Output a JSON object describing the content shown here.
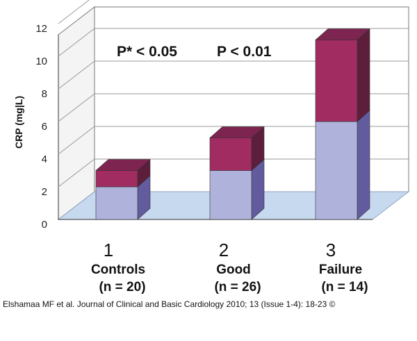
{
  "chart_data": {
    "type": "bar",
    "subtype": "stacked-3d",
    "title": "",
    "xlabel": "",
    "ylabel": "CRP (mg|L)",
    "ylim": [
      0,
      12
    ],
    "yticks": [
      "0",
      "2",
      "4",
      "6",
      "8",
      "10",
      "12"
    ],
    "categories": [
      {
        "number": "1",
        "name": "Controls",
        "n": "(n = 20)"
      },
      {
        "number": "2",
        "name": "Good",
        "n": "(n = 26)"
      },
      {
        "number": "3",
        "name": "Failure",
        "n": "(n = 14)"
      }
    ],
    "series": [
      {
        "name": "lower segment",
        "values": [
          2.0,
          3.0,
          6.0
        ]
      },
      {
        "name": "upper segment",
        "values": [
          1.0,
          2.0,
          5.0
        ]
      }
    ],
    "annotations": [
      "P* < 0.05",
      "P < 0.01"
    ],
    "colors": {
      "lower_front": "#afb3dc",
      "lower_side": "#625c9e",
      "upper_front": "#a02c62",
      "upper_side": "#5c1e3b",
      "top": "#7e2450",
      "floor": "#c6d9ef",
      "wall": "#ffffff",
      "wall_line": "#777777"
    }
  },
  "credit": "Elshamaa MF et al. Journal of Clinical and Basic Cardiology 2010; 13 (Issue 1-4): 18-23 ©"
}
